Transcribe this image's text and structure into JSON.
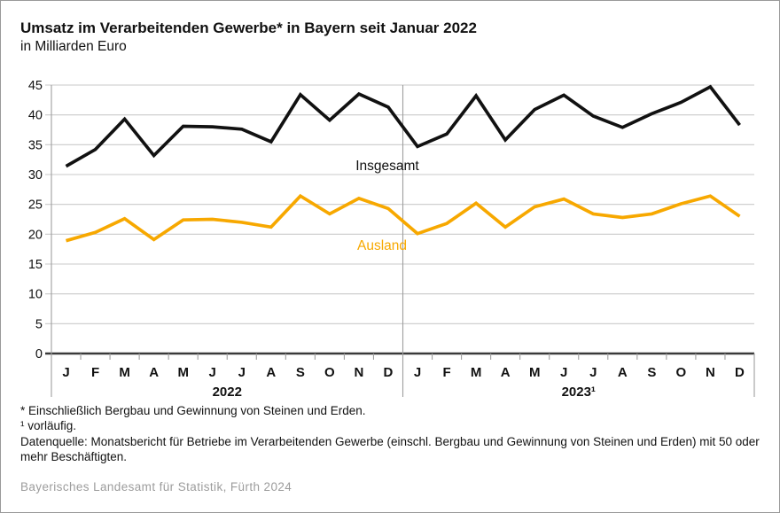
{
  "header": {
    "title": "Umsatz im Verarbeitenden Gewerbe* in Bayern seit Januar 2022",
    "subtitle": "in Milliarden Euro"
  },
  "chart_data": {
    "type": "line",
    "title": "Umsatz im Verarbeitenden Gewerbe* in Bayern seit Januar 2022",
    "ylabel": "in Milliarden Euro",
    "ylim": [
      0,
      45
    ],
    "yticks": [
      0,
      5,
      10,
      15,
      20,
      25,
      30,
      35,
      40,
      45
    ],
    "grid": true,
    "legend_position": "inline-labels",
    "x_groups": [
      {
        "label": "2022",
        "months": [
          "J",
          "F",
          "M",
          "A",
          "M",
          "J",
          "J",
          "A",
          "S",
          "O",
          "N",
          "D"
        ]
      },
      {
        "label": "2023¹",
        "months": [
          "J",
          "F",
          "M",
          "A",
          "M",
          "J",
          "J",
          "A",
          "S",
          "O",
          "N",
          "D"
        ]
      }
    ],
    "series": [
      {
        "name": "Insgesamt",
        "color": "#111111",
        "values": [
          31.4,
          34.2,
          39.3,
          33.2,
          38.1,
          38.0,
          37.6,
          35.5,
          43.4,
          39.1,
          43.5,
          41.3,
          34.7,
          36.8,
          43.2,
          35.8,
          40.9,
          43.3,
          39.8,
          37.9,
          40.2,
          42.1,
          44.7,
          38.3
        ]
      },
      {
        "name": "Ausland",
        "color": "#F7A800",
        "values": [
          18.9,
          20.3,
          22.6,
          19.1,
          22.4,
          22.5,
          22.0,
          21.2,
          26.4,
          23.4,
          26.0,
          24.3,
          20.1,
          21.8,
          25.2,
          21.2,
          24.6,
          25.9,
          23.4,
          22.8,
          23.4,
          25.1,
          26.4,
          23.0
        ]
      }
    ],
    "colors": {
      "gridline": "#c9c9c9",
      "zero_axis": "#3a3a3a",
      "axis_gray": "#9e9e9e",
      "tick_label": "#111111"
    }
  },
  "footnotes": [
    "* Einschließlich Bergbau und Gewinnung von Steinen und Erden.",
    "¹ vorläufig.",
    "Datenquelle: Monatsbericht für Betriebe im Verarbeitenden Gewerbe (einschl. Bergbau und Gewinnung von Steinen und Erden) mit 50 oder mehr Beschäftigten."
  ],
  "source": "Bayerisches Landesamt für Statistik, Fürth 2024"
}
